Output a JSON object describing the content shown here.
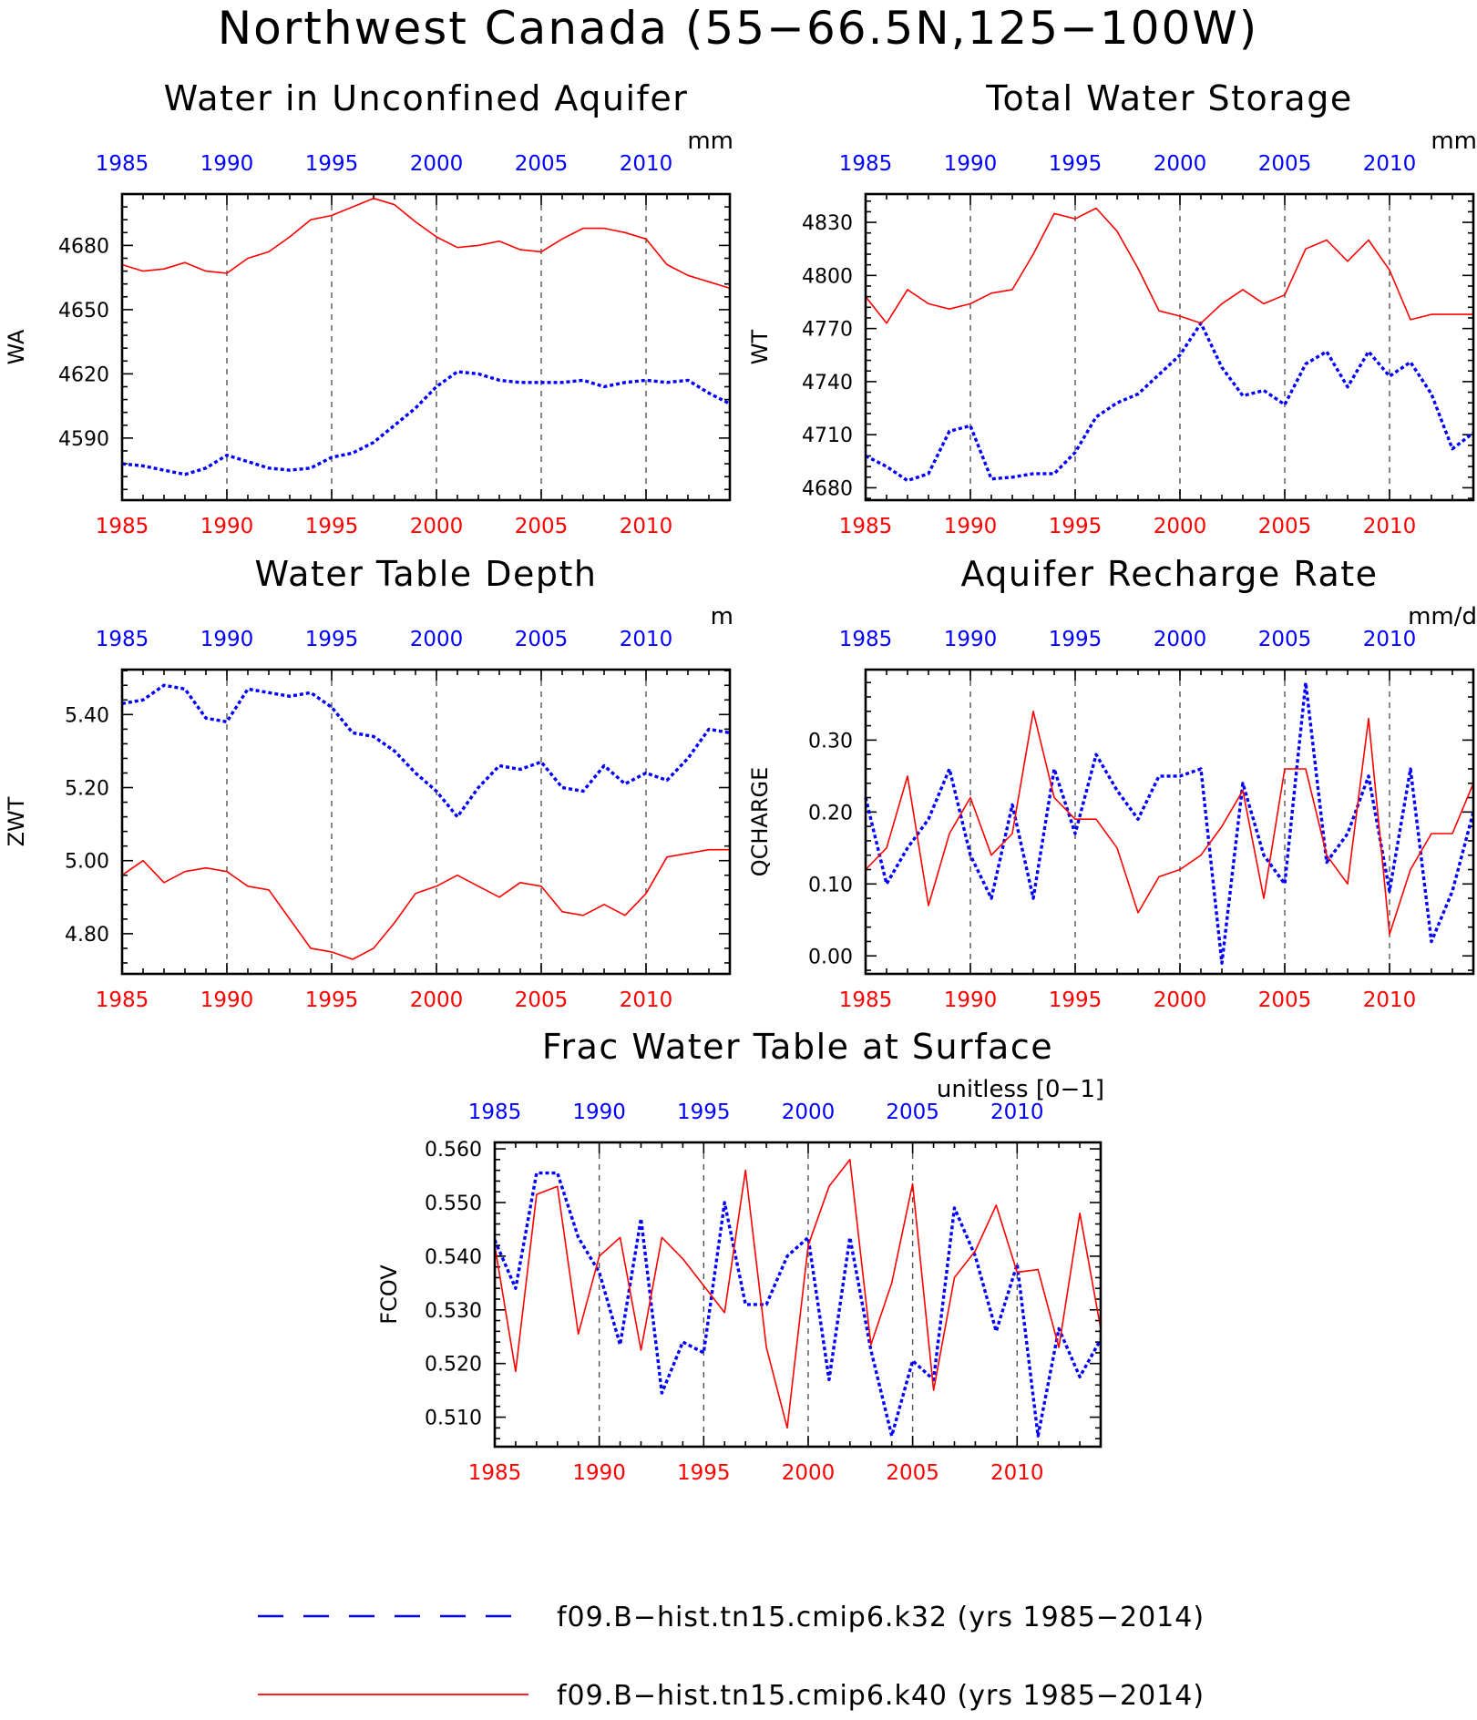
{
  "figure": {
    "title": "Northwest Canada (55−66.5N,125−100W)"
  },
  "colors": {
    "k32": "#0000ff",
    "k40": "#ff0000",
    "frame": "#000000",
    "grid": "#555555"
  },
  "legend": [
    {
      "label": "f09.B−hist.tn15.cmip6.k32 (yrs 1985−2014)",
      "color": "#0000ff",
      "style": "dashed"
    },
    {
      "label": "f09.B−hist.tn15.cmip6.k40 (yrs 1985−2014)",
      "color": "#ff0000",
      "style": "solid"
    }
  ],
  "chart_data": [
    {
      "id": "wa",
      "type": "line",
      "title": "Water in Unconfined Aquifer",
      "ylabel": "WA",
      "units": "mm",
      "xlim": [
        1985,
        2014
      ],
      "ylim": [
        4561,
        4704
      ],
      "xticks": [
        1985,
        1990,
        1995,
        2000,
        2005,
        2010
      ],
      "xtick_labels": [
        "1985",
        "1990",
        "1995",
        "2000",
        "2005",
        "2010"
      ],
      "yticks": [
        4590,
        4620,
        4650,
        4680
      ],
      "ytick_labels": [
        "4590",
        "4620",
        "4650",
        "4680"
      ],
      "grid_x": [
        1990,
        1995,
        2000,
        2005,
        2010
      ],
      "x": [
        1985,
        1986,
        1987,
        1988,
        1989,
        1990,
        1991,
        1992,
        1993,
        1994,
        1995,
        1996,
        1997,
        1998,
        1999,
        2000,
        2001,
        2002,
        2003,
        2004,
        2005,
        2006,
        2007,
        2008,
        2009,
        2010,
        2011,
        2012,
        2013,
        2014
      ],
      "series": [
        {
          "name": "f09.B−hist.tn15.cmip6.k32 (yrs 1985−2014)",
          "color": "#0000ff",
          "dash": "dotted",
          "values": [
            4578,
            4577,
            4575,
            4573,
            4576,
            4582,
            4579,
            4576,
            4575,
            4576,
            4581,
            4583,
            4588,
            4596,
            4604,
            4614,
            4621,
            4620,
            4617,
            4616,
            4616,
            4616,
            4617,
            4614,
            4616,
            4617,
            4616,
            4617,
            4611,
            4606
          ]
        },
        {
          "name": "f09.B−hist.tn15.cmip6.k40 (yrs 1985−2014)",
          "color": "#ff0000",
          "dash": "solid",
          "values": [
            4671,
            4668,
            4669,
            4672,
            4668,
            4667,
            4674,
            4677,
            4684,
            4692,
            4694,
            4698,
            4702,
            4699,
            4691,
            4684,
            4679,
            4680,
            4682,
            4678,
            4677,
            4683,
            4688,
            4688,
            4686,
            4683,
            4671,
            4666,
            4663,
            4660
          ]
        }
      ]
    },
    {
      "id": "wt",
      "type": "line",
      "title": "Total Water Storage",
      "ylabel": "WT",
      "units": "mm",
      "xlim": [
        1985,
        2014
      ],
      "ylim": [
        4673,
        4846
      ],
      "xticks": [
        1985,
        1990,
        1995,
        2000,
        2005,
        2010
      ],
      "xtick_labels": [
        "1985",
        "1990",
        "1995",
        "2000",
        "2005",
        "2010"
      ],
      "yticks": [
        4680,
        4710,
        4740,
        4770,
        4800,
        4830
      ],
      "ytick_labels": [
        "4680",
        "4710",
        "4740",
        "4770",
        "4800",
        "4830"
      ],
      "grid_x": [
        1990,
        1995,
        2000,
        2005,
        2010
      ],
      "x": [
        1985,
        1986,
        1987,
        1988,
        1989,
        1990,
        1991,
        1992,
        1993,
        1994,
        1995,
        1996,
        1997,
        1998,
        1999,
        2000,
        2001,
        2002,
        2003,
        2004,
        2005,
        2006,
        2007,
        2008,
        2009,
        2010,
        2011,
        2012,
        2013,
        2014
      ],
      "series": [
        {
          "name": "f09.B−hist.tn15.cmip6.k32 (yrs 1985−2014)",
          "color": "#0000ff",
          "dash": "dotted",
          "values": [
            4698,
            4692,
            4684,
            4688,
            4712,
            4715,
            4685,
            4686,
            4688,
            4688,
            4700,
            4720,
            4728,
            4733,
            4744,
            4755,
            4773,
            4748,
            4732,
            4735,
            4727,
            4750,
            4757,
            4737,
            4757,
            4743,
            4751,
            4733,
            4702,
            4711
          ]
        },
        {
          "name": "f09.B−hist.tn15.cmip6.k40 (yrs 1985−2014)",
          "color": "#ff0000",
          "dash": "solid",
          "values": [
            4788,
            4773,
            4792,
            4784,
            4781,
            4784,
            4790,
            4792,
            4812,
            4835,
            4832,
            4838,
            4825,
            4804,
            4780,
            4777,
            4773,
            4784,
            4792,
            4784,
            4789,
            4815,
            4820,
            4808,
            4820,
            4803,
            4775,
            4778,
            4778,
            4778
          ]
        }
      ]
    },
    {
      "id": "zwt",
      "type": "line",
      "title": "Water Table Depth",
      "ylabel": "ZWT",
      "units": "m",
      "xlim": [
        1985,
        2014
      ],
      "ylim": [
        4.69,
        5.523
      ],
      "xticks": [
        1985,
        1990,
        1995,
        2000,
        2005,
        2010
      ],
      "xtick_labels": [
        "1985",
        "1990",
        "1995",
        "2000",
        "2005",
        "2010"
      ],
      "yticks": [
        4.8,
        5.0,
        5.2,
        5.4
      ],
      "ytick_labels": [
        "4.80",
        "5.00",
        "5.20",
        "5.40"
      ],
      "grid_x": [
        1990,
        1995,
        2000,
        2005,
        2010
      ],
      "x": [
        1985,
        1986,
        1987,
        1988,
        1989,
        1990,
        1991,
        1992,
        1993,
        1994,
        1995,
        1996,
        1997,
        1998,
        1999,
        2000,
        2001,
        2002,
        2003,
        2004,
        2005,
        2006,
        2007,
        2008,
        2009,
        2010,
        2011,
        2012,
        2013,
        2014
      ],
      "series": [
        {
          "name": "f09.B−hist.tn15.cmip6.k32 (yrs 1985−2014)",
          "color": "#0000ff",
          "dash": "dotted",
          "values": [
            5.43,
            5.44,
            5.48,
            5.47,
            5.39,
            5.38,
            5.47,
            5.46,
            5.45,
            5.46,
            5.42,
            5.35,
            5.34,
            5.3,
            5.24,
            5.19,
            5.12,
            5.2,
            5.26,
            5.25,
            5.27,
            5.2,
            5.19,
            5.26,
            5.21,
            5.24,
            5.22,
            5.28,
            5.36,
            5.35
          ]
        },
        {
          "name": "f09.B−hist.tn15.cmip6.k40 (yrs 1985−2014)",
          "color": "#ff0000",
          "dash": "solid",
          "values": [
            4.96,
            5.0,
            4.94,
            4.97,
            4.98,
            4.97,
            4.93,
            4.92,
            4.84,
            4.76,
            4.75,
            4.73,
            4.76,
            4.83,
            4.91,
            4.93,
            4.96,
            4.93,
            4.9,
            4.94,
            4.93,
            4.86,
            4.85,
            4.88,
            4.85,
            4.91,
            5.01,
            5.02,
            5.03,
            5.03
          ]
        }
      ]
    },
    {
      "id": "qcharge",
      "type": "line",
      "title": "Aquifer Recharge Rate",
      "ylabel": "QCHARGE",
      "units": "mm/d",
      "xlim": [
        1985,
        2014
      ],
      "ylim": [
        -0.025,
        0.398
      ],
      "xticks": [
        1985,
        1990,
        1995,
        2000,
        2005,
        2010
      ],
      "xtick_labels": [
        "1985",
        "1990",
        "1995",
        "2000",
        "2005",
        "2010"
      ],
      "yticks": [
        0.0,
        0.1,
        0.2,
        0.3
      ],
      "ytick_labels": [
        "0.00",
        "0.10",
        "0.20",
        "0.30"
      ],
      "grid_x": [
        1990,
        1995,
        2000,
        2005,
        2010
      ],
      "x": [
        1985,
        1986,
        1987,
        1988,
        1989,
        1990,
        1991,
        1992,
        1993,
        1994,
        1995,
        1996,
        1997,
        1998,
        1999,
        2000,
        2001,
        2002,
        2003,
        2004,
        2005,
        2006,
        2007,
        2008,
        2009,
        2010,
        2011,
        2012,
        2013,
        2014
      ],
      "series": [
        {
          "name": "f09.B−hist.tn15.cmip6.k32 (yrs 1985−2014)",
          "color": "#0000ff",
          "dash": "dotted",
          "values": [
            0.22,
            0.1,
            0.15,
            0.19,
            0.26,
            0.14,
            0.08,
            0.21,
            0.08,
            0.26,
            0.17,
            0.28,
            0.23,
            0.19,
            0.25,
            0.25,
            0.26,
            -0.01,
            0.24,
            0.14,
            0.1,
            0.38,
            0.13,
            0.17,
            0.25,
            0.09,
            0.26,
            0.02,
            0.09,
            0.2
          ]
        },
        {
          "name": "f09.B−hist.tn15.cmip6.k40 (yrs 1985−2014)",
          "color": "#ff0000",
          "dash": "solid",
          "values": [
            0.12,
            0.15,
            0.25,
            0.07,
            0.17,
            0.22,
            0.14,
            0.17,
            0.34,
            0.22,
            0.19,
            0.19,
            0.15,
            0.06,
            0.11,
            0.12,
            0.14,
            0.18,
            0.23,
            0.08,
            0.26,
            0.26,
            0.14,
            0.1,
            0.33,
            0.03,
            0.12,
            0.17,
            0.17,
            0.24
          ]
        }
      ]
    },
    {
      "id": "fcov",
      "type": "line",
      "title": "Frac Water Table at Surface",
      "ylabel": "FCOV",
      "units": "unitless [0−1]",
      "xlim": [
        1985,
        2014
      ],
      "ylim": [
        0.5045,
        0.5612
      ],
      "xticks": [
        1985,
        1990,
        1995,
        2000,
        2005,
        2010
      ],
      "xtick_labels": [
        "1985",
        "1990",
        "1995",
        "2000",
        "2005",
        "2010"
      ],
      "yticks": [
        0.51,
        0.52,
        0.53,
        0.54,
        0.55,
        0.56
      ],
      "ytick_labels": [
        "0.510",
        "0.520",
        "0.530",
        "0.540",
        "0.550",
        "0.560"
      ],
      "grid_x": [
        1990,
        1995,
        2000,
        2005,
        2010
      ],
      "x": [
        1985,
        1986,
        1987,
        1988,
        1989,
        1990,
        1991,
        1992,
        1993,
        1994,
        1995,
        1996,
        1997,
        1998,
        1999,
        2000,
        2001,
        2002,
        2003,
        2004,
        2005,
        2006,
        2007,
        2008,
        2009,
        2010,
        2011,
        2012,
        2013,
        2014
      ],
      "series": [
        {
          "name": "f09.B−hist.tn15.cmip6.k32 (yrs 1985−2014)",
          "color": "#0000ff",
          "dash": "dotted",
          "values": [
            0.543,
            0.534,
            0.5555,
            0.5555,
            0.5435,
            0.537,
            0.5235,
            0.547,
            0.5145,
            0.524,
            0.522,
            0.55,
            0.531,
            0.531,
            0.54,
            0.5435,
            0.517,
            0.5435,
            0.5225,
            0.5065,
            0.5205,
            0.517,
            0.549,
            0.54,
            0.526,
            0.5385,
            0.5065,
            0.5265,
            0.5175,
            0.5245
          ]
        },
        {
          "name": "f09.B−hist.tn15.cmip6.k40 (yrs 1985−2014)",
          "color": "#ff0000",
          "dash": "solid",
          "values": [
            0.542,
            0.5185,
            0.5515,
            0.553,
            0.5255,
            0.54,
            0.5435,
            0.5225,
            0.5435,
            0.5395,
            0.5345,
            0.5295,
            0.556,
            0.523,
            0.508,
            0.542,
            0.553,
            0.558,
            0.5235,
            0.535,
            0.5535,
            0.515,
            0.536,
            0.541,
            0.5495,
            0.537,
            0.5375,
            0.523,
            0.548,
            0.5265
          ]
        }
      ]
    }
  ]
}
